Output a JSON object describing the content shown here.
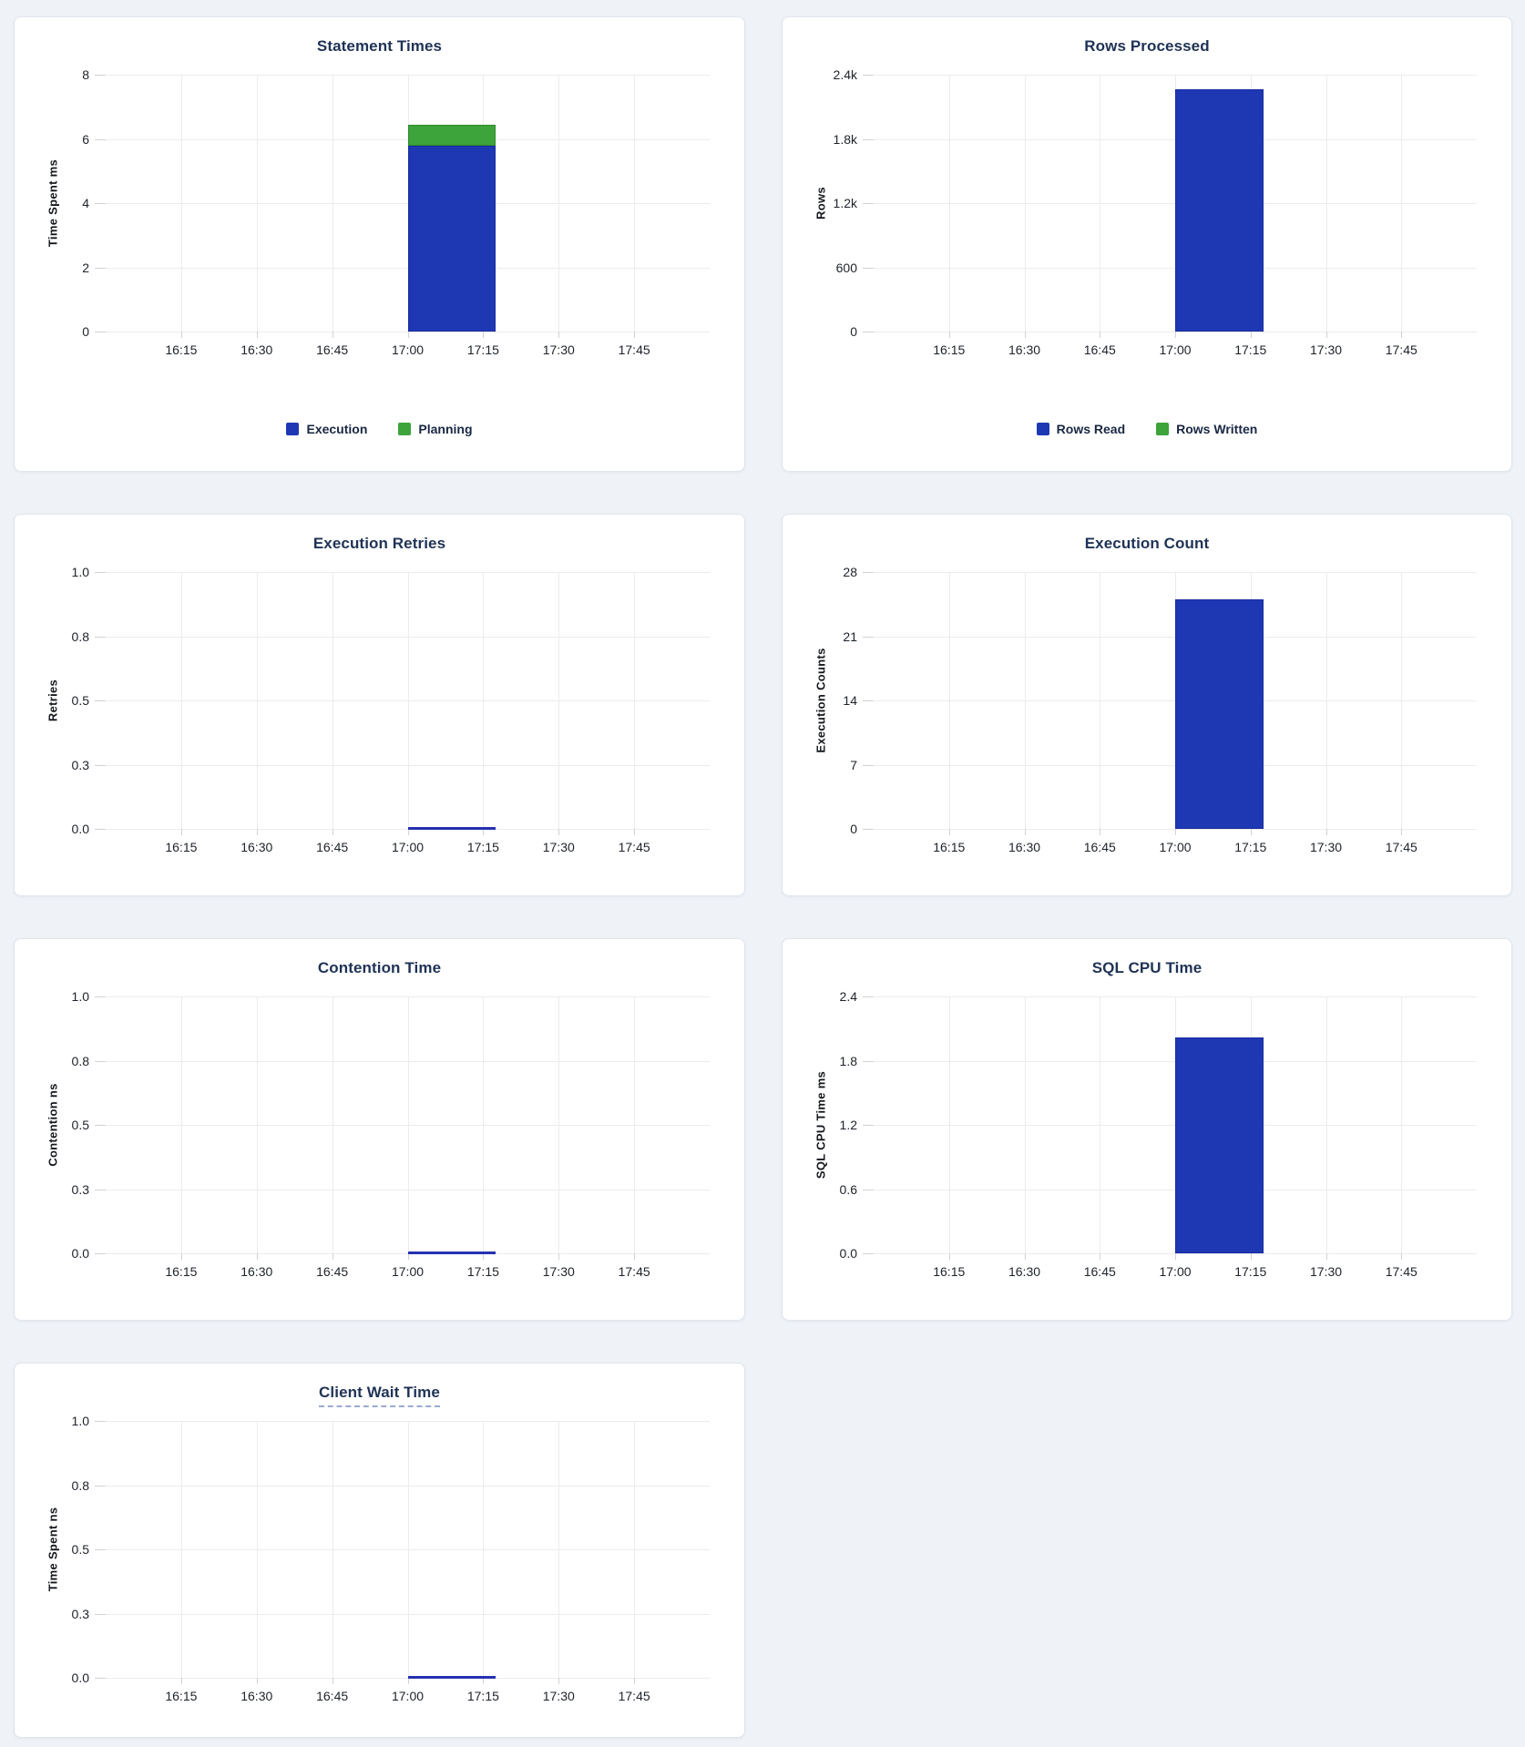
{
  "page": {
    "background_color": "#eff3f7",
    "card_background": "#ffffff",
    "card_border_color": "#dfe5ee"
  },
  "colors": {
    "title_text": "#1f3256",
    "tick_label_text": "#1d222a",
    "gridline": "#ececee",
    "tick_mark": "#cfd2d7",
    "bar_blue": "#1e38b3",
    "bar_blue_border": "#1a2aa0",
    "bar_green": "#3da33b",
    "bar_green_border": "#2e8a2c",
    "line_blue": "#2531b1",
    "legend_text": "#192744",
    "dashed_underline": "#97abd3"
  },
  "axis": {
    "bar_start_frac": 0.5,
    "bar_width_frac": 0.146,
    "x_window": [
      "16:00",
      "18:00"
    ]
  },
  "chart_data": [
    {
      "slug": "statement-times",
      "type": "bar",
      "stacked": true,
      "title": "Statement Times",
      "title_dashed_underline": false,
      "xlabel": "",
      "ylabel": "Time Spent ms",
      "ylim": [
        0,
        8
      ],
      "y_tick_labels": [
        "8",
        "6",
        "4",
        "2",
        "0"
      ],
      "x_tick_labels": [
        "16:15",
        "16:30",
        "16:45",
        "17:00",
        "17:15",
        "17:30",
        "17:45"
      ],
      "grid": true,
      "legend_position": "bottom",
      "series": [
        {
          "name": "Execution",
          "color": "#1e38b3",
          "border_color": "#1a2aa0",
          "x_start": "17:00",
          "x_end": "17:17",
          "value": 5.8
        },
        {
          "name": "Planning",
          "color": "#3da33b",
          "border_color": "#2e8a2c",
          "x_start": "17:00",
          "x_end": "17:17",
          "value": 0.65
        }
      ],
      "legend": [
        {
          "label": "Execution",
          "color": "#1e38b3"
        },
        {
          "label": "Planning",
          "color": "#3da33b"
        }
      ]
    },
    {
      "slug": "rows-processed",
      "type": "bar",
      "stacked": true,
      "title": "Rows Processed",
      "title_dashed_underline": false,
      "xlabel": "",
      "ylabel": "Rows",
      "ylim": [
        0,
        2400
      ],
      "y_tick_labels": [
        "2.4k",
        "1.8k",
        "1.2k",
        "600",
        "0"
      ],
      "x_tick_labels": [
        "16:15",
        "16:30",
        "16:45",
        "17:00",
        "17:15",
        "17:30",
        "17:45"
      ],
      "grid": true,
      "legend_position": "bottom",
      "series": [
        {
          "name": "Rows Read",
          "color": "#1e38b3",
          "border_color": "#1a2aa0",
          "x_start": "17:00",
          "x_end": "17:17",
          "value": 2264
        },
        {
          "name": "Rows Written",
          "color": "#3da33b",
          "border_color": "#2e8a2c",
          "x_start": "17:00",
          "x_end": "17:17",
          "value": 0
        }
      ],
      "legend": [
        {
          "label": "Rows Read",
          "color": "#1e38b3"
        },
        {
          "label": "Rows Written",
          "color": "#3da33b"
        }
      ]
    },
    {
      "slug": "execution-retries",
      "type": "line",
      "stacked": false,
      "title": "Execution Retries",
      "title_dashed_underline": false,
      "xlabel": "",
      "ylabel": "Retries",
      "ylim": [
        0,
        1.0
      ],
      "y_tick_labels": [
        "1.0",
        "0.8",
        "0.5",
        "0.3",
        "0.0"
      ],
      "x_tick_labels": [
        "16:15",
        "16:30",
        "16:45",
        "17:00",
        "17:15",
        "17:30",
        "17:45"
      ],
      "grid": true,
      "legend_position": "none",
      "series": [
        {
          "name": "Retries",
          "color": "#2531b1",
          "border_color": "#2531b1",
          "x_start": "17:00",
          "x_end": "17:17",
          "value": 0
        }
      ],
      "legend": []
    },
    {
      "slug": "execution-count",
      "type": "bar",
      "stacked": false,
      "title": "Execution Count",
      "title_dashed_underline": false,
      "xlabel": "",
      "ylabel": "Execution Counts",
      "ylim": [
        0,
        28
      ],
      "y_tick_labels": [
        "28",
        "21",
        "14",
        "7",
        "0"
      ],
      "x_tick_labels": [
        "16:15",
        "16:30",
        "16:45",
        "17:00",
        "17:15",
        "17:30",
        "17:45"
      ],
      "grid": true,
      "legend_position": "none",
      "series": [
        {
          "name": "Execution Count",
          "color": "#1e38b3",
          "border_color": "#1a2aa0",
          "x_start": "17:00",
          "x_end": "17:17",
          "value": 25
        }
      ],
      "legend": []
    },
    {
      "slug": "contention-time",
      "type": "line",
      "stacked": false,
      "title": "Contention Time",
      "title_dashed_underline": false,
      "xlabel": "",
      "ylabel": "Contention ns",
      "ylim": [
        0,
        1.0
      ],
      "y_tick_labels": [
        "1.0",
        "0.8",
        "0.5",
        "0.3",
        "0.0"
      ],
      "x_tick_labels": [
        "16:15",
        "16:30",
        "16:45",
        "17:00",
        "17:15",
        "17:30",
        "17:45"
      ],
      "grid": true,
      "legend_position": "none",
      "series": [
        {
          "name": "Contention",
          "color": "#2531b1",
          "border_color": "#2531b1",
          "x_start": "17:00",
          "x_end": "17:17",
          "value": 0
        }
      ],
      "legend": []
    },
    {
      "slug": "sql-cpu-time",
      "type": "bar",
      "stacked": false,
      "title": "SQL CPU Time",
      "title_dashed_underline": false,
      "xlabel": "",
      "ylabel": "SQL CPU Time ms",
      "ylim": [
        0,
        2.4
      ],
      "y_tick_labels": [
        "2.4",
        "1.8",
        "1.2",
        "0.6",
        "0.0"
      ],
      "x_tick_labels": [
        "16:15",
        "16:30",
        "16:45",
        "17:00",
        "17:15",
        "17:30",
        "17:45"
      ],
      "grid": true,
      "legend_position": "none",
      "series": [
        {
          "name": "SQL CPU Time",
          "color": "#1e38b3",
          "border_color": "#1a2aa0",
          "x_start": "17:00",
          "x_end": "17:17",
          "value": 2.02
        }
      ],
      "legend": []
    },
    {
      "slug": "client-wait-time",
      "type": "line",
      "stacked": false,
      "title": "Client Wait Time",
      "title_dashed_underline": true,
      "xlabel": "",
      "ylabel": "Time Spent ns",
      "ylim": [
        0,
        1.0
      ],
      "y_tick_labels": [
        "1.0",
        "0.8",
        "0.5",
        "0.3",
        "0.0"
      ],
      "x_tick_labels": [
        "16:15",
        "16:30",
        "16:45",
        "17:00",
        "17:15",
        "17:30",
        "17:45"
      ],
      "grid": true,
      "legend_position": "none",
      "series": [
        {
          "name": "Client Wait",
          "color": "#2531b1",
          "border_color": "#2531b1",
          "x_start": "17:00",
          "x_end": "17:17",
          "value": 0
        }
      ],
      "legend": []
    }
  ]
}
